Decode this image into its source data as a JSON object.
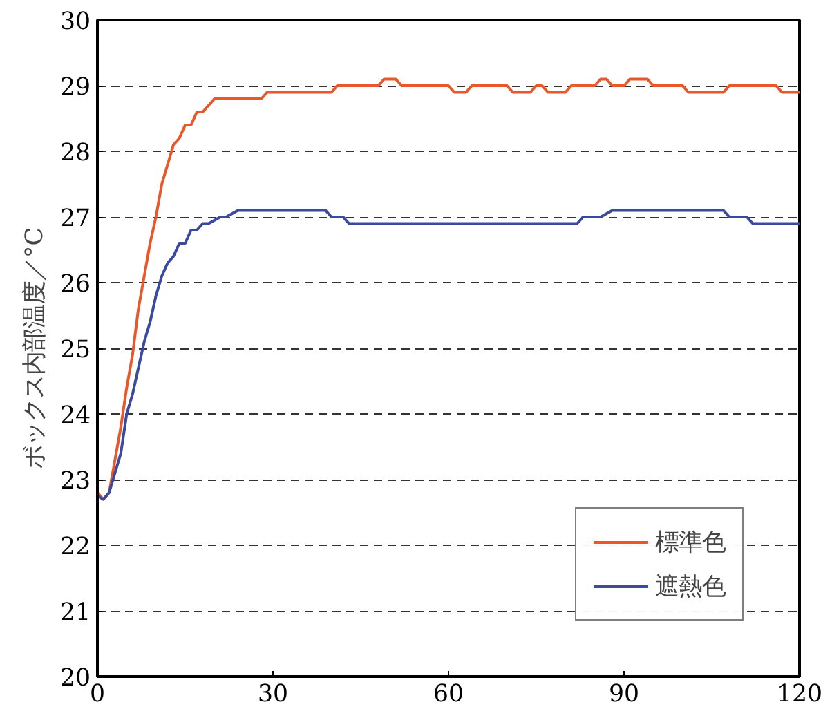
{
  "chart_data": {
    "type": "line",
    "ylabel": "ボックス内部温度／°C",
    "xlim": [
      0,
      120
    ],
    "ylim": [
      20,
      30
    ],
    "xticks": [
      0,
      30,
      60,
      90,
      120
    ],
    "yticks": [
      20,
      21,
      22,
      23,
      24,
      25,
      26,
      27,
      28,
      29,
      30
    ],
    "grid": "y",
    "legend": "bottom right",
    "marker": "none",
    "line_style": "solid",
    "series": [
      {
        "name": "標準色",
        "color": "#e8582a",
        "x": [
          0,
          1,
          2,
          3,
          4,
          5,
          6,
          7,
          8,
          9,
          10,
          11,
          12,
          13,
          14,
          15,
          16,
          17,
          18,
          19,
          20,
          28,
          29,
          40,
          41,
          48,
          49,
          51,
          52,
          60,
          61,
          63,
          64,
          70,
          71,
          74,
          75,
          76,
          77,
          80,
          81,
          85,
          86,
          87,
          88,
          90,
          91,
          94,
          95,
          100,
          101,
          107,
          108,
          116,
          117,
          120
        ],
        "values": [
          22.8,
          22.7,
          22.8,
          23.3,
          23.8,
          24.4,
          24.9,
          25.6,
          26.1,
          26.6,
          27.0,
          27.5,
          27.8,
          28.1,
          28.2,
          28.4,
          28.4,
          28.6,
          28.6,
          28.7,
          28.8,
          28.8,
          28.9,
          28.9,
          29.0,
          29.0,
          29.1,
          29.1,
          29.0,
          29.0,
          28.9,
          28.9,
          29.0,
          29.0,
          28.9,
          28.9,
          29.0,
          29.0,
          28.9,
          28.9,
          29.0,
          29.0,
          29.1,
          29.1,
          29.0,
          29.0,
          29.1,
          29.1,
          29.0,
          29.0,
          28.9,
          28.9,
          29.0,
          29.0,
          28.9,
          28.9
        ]
      },
      {
        "name": "遮熱色",
        "color": "#3a4aa0",
        "x": [
          0,
          1,
          2,
          3,
          4,
          5,
          6,
          7,
          8,
          9,
          10,
          11,
          12,
          13,
          14,
          15,
          16,
          17,
          18,
          19,
          21,
          22,
          24,
          25,
          39,
          40,
          42,
          43,
          82,
          83,
          86,
          88,
          107,
          108,
          111,
          112,
          120
        ],
        "values": [
          22.75,
          22.7,
          22.8,
          23.1,
          23.4,
          24.0,
          24.3,
          24.7,
          25.1,
          25.4,
          25.8,
          26.1,
          26.3,
          26.4,
          26.6,
          26.6,
          26.8,
          26.8,
          26.9,
          26.9,
          27.0,
          27.0,
          27.1,
          27.1,
          27.1,
          27.0,
          27.0,
          26.9,
          26.9,
          27.0,
          27.0,
          27.1,
          27.1,
          27.0,
          27.0,
          26.9,
          26.9
        ]
      }
    ]
  }
}
